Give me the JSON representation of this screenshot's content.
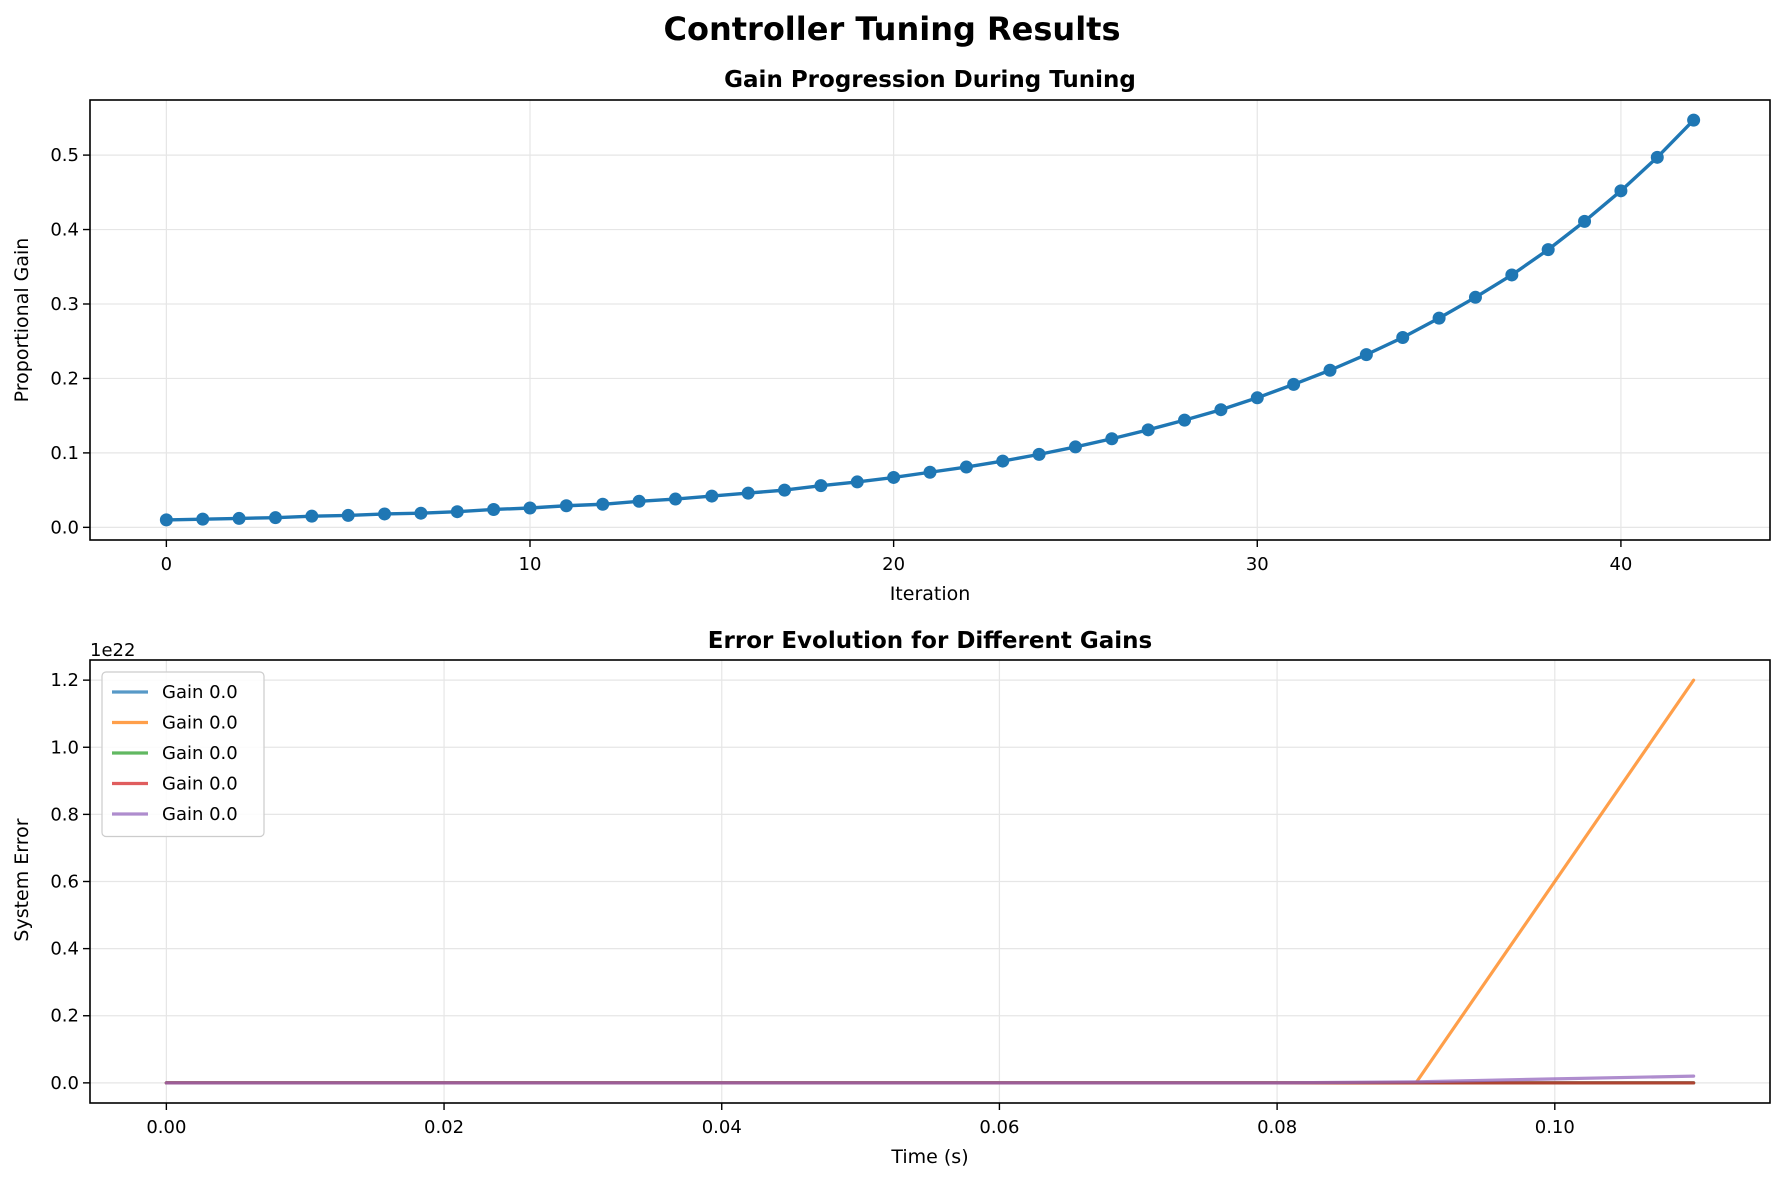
{
  "figure": {
    "suptitle": "Controller Tuning Results"
  },
  "chart_data": [
    {
      "type": "line",
      "title": "Gain Progression During Tuning",
      "xlabel": "Iteration",
      "ylabel": "Proportional Gain",
      "xlim": [
        -2.1,
        44.1
      ],
      "ylim": [
        -0.017,
        0.574
      ],
      "xticks": [
        0,
        10,
        20,
        30,
        40
      ],
      "xtick_labels": [
        "0",
        "10",
        "20",
        "30",
        "40"
      ],
      "yticks": [
        0.0,
        0.1,
        0.2,
        0.3,
        0.4,
        0.5
      ],
      "ytick_labels": [
        "0.0",
        "0.1",
        "0.2",
        "0.3",
        "0.4",
        "0.5"
      ],
      "grid": true,
      "markers": true,
      "color": "#1f77b4",
      "series": [
        {
          "x": [
            0,
            1,
            2,
            3,
            4,
            5,
            6,
            7,
            8,
            9,
            10,
            11,
            12,
            13,
            14,
            15,
            16,
            17,
            18,
            19,
            20,
            21,
            22,
            23,
            24,
            25,
            26,
            27,
            28,
            29,
            30,
            31,
            32,
            33,
            34,
            35,
            36,
            37,
            38,
            39,
            40,
            41,
            42
          ],
          "values": [
            0.01,
            0.011,
            0.012,
            0.013,
            0.015,
            0.016,
            0.018,
            0.019,
            0.021,
            0.024,
            0.026,
            0.029,
            0.031,
            0.035,
            0.038,
            0.042,
            0.046,
            0.05,
            0.056,
            0.061,
            0.067,
            0.074,
            0.081,
            0.089,
            0.098,
            0.108,
            0.119,
            0.131,
            0.144,
            0.158,
            0.174,
            0.192,
            0.211,
            0.232,
            0.255,
            0.281,
            0.309,
            0.339,
            0.373,
            0.411,
            0.452,
            0.497,
            0.547
          ]
        }
      ]
    },
    {
      "type": "line",
      "title": "Error Evolution for Different Gains",
      "xlabel": "Time (s)",
      "ylabel": "System Error",
      "y_offset_label": "1e22",
      "xlim": [
        -0.0055,
        0.1155
      ],
      "ylim": [
        -0.06,
        1.26
      ],
      "xticks": [
        0.0,
        0.02,
        0.04,
        0.06,
        0.08,
        0.1
      ],
      "xtick_labels": [
        "0.00",
        "0.02",
        "0.04",
        "0.06",
        "0.08",
        "0.10"
      ],
      "yticks": [
        0.0,
        0.2,
        0.4,
        0.6,
        0.8,
        1.0,
        1.2
      ],
      "ytick_labels": [
        "0.0",
        "0.2",
        "0.4",
        "0.6",
        "0.8",
        "1.0",
        "1.2"
      ],
      "grid": true,
      "legend_position": "upper-left",
      "series": [
        {
          "name": "Gain 0.0",
          "color": "#1f77b4",
          "x": [
            0.0,
            0.08,
            0.09,
            0.1,
            0.11
          ],
          "values": [
            0.0,
            0.0,
            0.0,
            0.0,
            0.0
          ]
        },
        {
          "name": "Gain 0.0",
          "color": "#ff7f0e",
          "x": [
            0.0,
            0.08,
            0.09,
            0.1,
            0.11
          ],
          "values": [
            0.0,
            0.0,
            0.0,
            0.6,
            1.2
          ]
        },
        {
          "name": "Gain 0.0",
          "color": "#2ca02c",
          "x": [
            0.0,
            0.08,
            0.09,
            0.1,
            0.11
          ],
          "values": [
            0.0,
            0.0,
            0.0,
            0.0,
            0.0
          ]
        },
        {
          "name": "Gain 0.0",
          "color": "#d62728",
          "x": [
            0.0,
            0.08,
            0.09,
            0.1,
            0.11
          ],
          "values": [
            0.0,
            0.0,
            0.0,
            0.0,
            0.0
          ]
        },
        {
          "name": "Gain 0.0",
          "color": "#9467bd",
          "x": [
            0.0,
            0.08,
            0.09,
            0.1,
            0.11
          ],
          "values": [
            0.0,
            0.0,
            0.003,
            0.012,
            0.02
          ]
        }
      ]
    }
  ]
}
